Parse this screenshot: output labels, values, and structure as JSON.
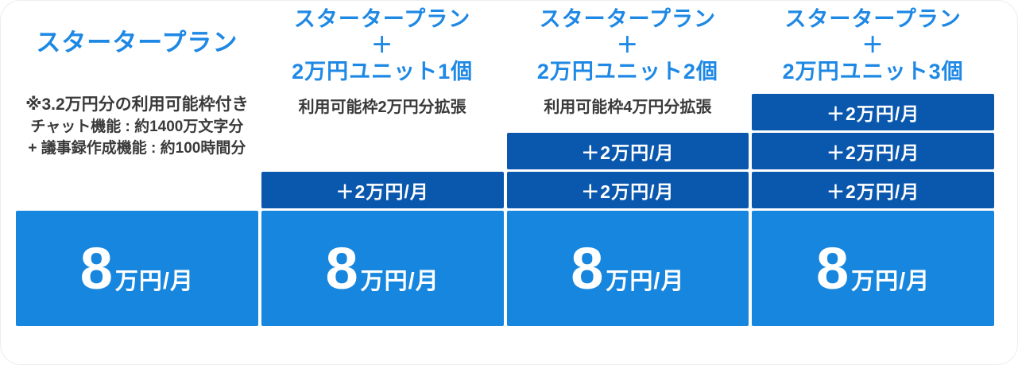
{
  "colors": {
    "title_blue": "#1E88E5",
    "unit_bar_blue": "#0A57AE",
    "price_box_blue": "#1786DE",
    "note_text": "#3a3a3a"
  },
  "columns": [
    {
      "title_lines": [
        "スタータープラン"
      ],
      "notes": [
        "※3.2万円分の利用可能枠付き",
        "チャット機能 : 約1400万文字分",
        "+ 議事録作成機能 : 約100時間分"
      ],
      "units": [],
      "price": {
        "amount": "8",
        "suffix": "万円/月"
      }
    },
    {
      "title_lines": [
        "スタータープラン",
        "＋",
        "2万円ユニット1個"
      ],
      "subtitle": "利用可能枠2万円分拡張",
      "units": [
        "＋2万円/月"
      ],
      "price": {
        "amount": "8",
        "suffix": "万円/月"
      }
    },
    {
      "title_lines": [
        "スタータープラン",
        "＋",
        "2万円ユニット2個"
      ],
      "subtitle": "利用可能枠4万円分拡張",
      "units": [
        "＋2万円/月",
        "＋2万円/月"
      ],
      "price": {
        "amount": "8",
        "suffix": "万円/月"
      }
    },
    {
      "title_lines": [
        "スタータープラン",
        "＋",
        "2万円ユニット3個"
      ],
      "subtitle": "",
      "units": [
        "＋2万円/月",
        "＋2万円/月",
        "＋2万円/月"
      ],
      "price": {
        "amount": "8",
        "suffix": "万円/月"
      }
    }
  ]
}
